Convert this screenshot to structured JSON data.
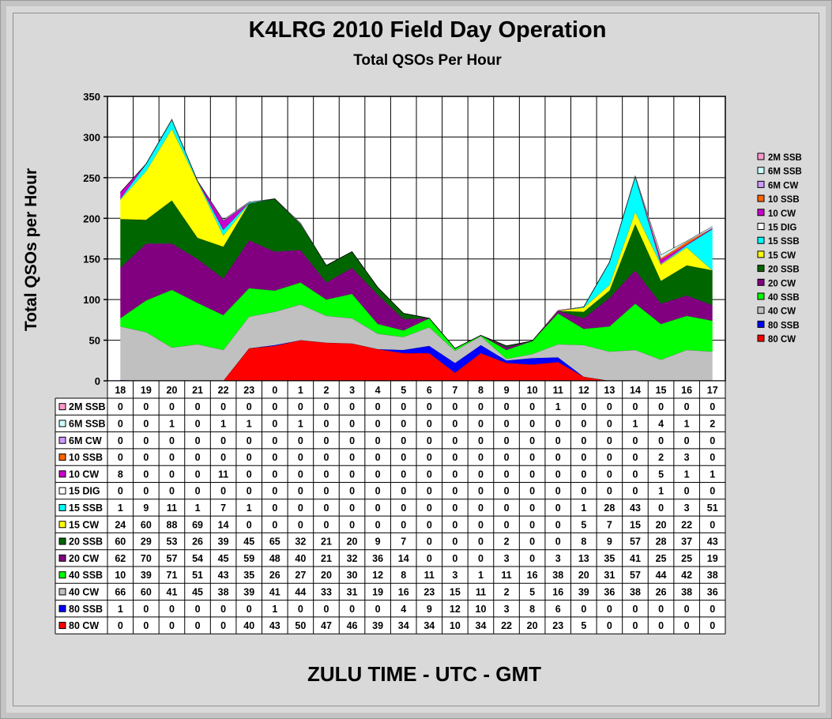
{
  "chart_data": {
    "type": "area",
    "stacked": true,
    "title": "K4LRG 2010 Field Day Operation",
    "subtitle": "Total QSOs Per Hour",
    "ylabel": "Total  QSOs  per  Hour",
    "xlabel": "ZULU TIME  -  UTC  -  GMT",
    "ylim": [
      0,
      350
    ],
    "yticks": [
      0,
      50,
      100,
      150,
      200,
      250,
      300,
      350
    ],
    "grid": true,
    "legend_position": "right",
    "categories": [
      "18",
      "19",
      "20",
      "21",
      "22",
      "23",
      "0",
      "1",
      "2",
      "3",
      "4",
      "5",
      "6",
      "7",
      "8",
      "9",
      "10",
      "11",
      "12",
      "13",
      "14",
      "15",
      "16",
      "17"
    ],
    "series": [
      {
        "name": "2M SSB",
        "color": "#ff99cc",
        "values": [
          0,
          0,
          0,
          0,
          0,
          0,
          0,
          0,
          0,
          0,
          0,
          0,
          0,
          0,
          0,
          0,
          0,
          1,
          0,
          0,
          0,
          0,
          0,
          0
        ]
      },
      {
        "name": "6M SSB",
        "color": "#ccffff",
        "values": [
          0,
          0,
          1,
          0,
          1,
          1,
          0,
          1,
          0,
          0,
          0,
          0,
          0,
          0,
          0,
          0,
          0,
          0,
          0,
          0,
          1,
          4,
          1,
          2
        ]
      },
      {
        "name": "6M CW",
        "color": "#cc99ff",
        "values": [
          0,
          0,
          0,
          0,
          0,
          0,
          0,
          0,
          0,
          0,
          0,
          0,
          0,
          0,
          0,
          0,
          0,
          0,
          0,
          0,
          0,
          0,
          0,
          0
        ]
      },
      {
        "name": "10 SSB",
        "color": "#ff6600",
        "values": [
          0,
          0,
          0,
          0,
          0,
          0,
          0,
          0,
          0,
          0,
          0,
          0,
          0,
          0,
          0,
          0,
          0,
          0,
          0,
          0,
          0,
          2,
          3,
          0
        ]
      },
      {
        "name": "10 CW",
        "color": "#cc00cc",
        "values": [
          8,
          0,
          0,
          0,
          11,
          0,
          0,
          0,
          0,
          0,
          0,
          0,
          0,
          0,
          0,
          0,
          0,
          0,
          0,
          0,
          0,
          5,
          1,
          1
        ]
      },
      {
        "name": "15 DIG",
        "color": "#ffffff",
        "values": [
          0,
          0,
          0,
          0,
          0,
          0,
          0,
          0,
          0,
          0,
          0,
          0,
          0,
          0,
          0,
          0,
          0,
          0,
          0,
          0,
          0,
          1,
          0,
          0
        ]
      },
      {
        "name": "15 SSB",
        "color": "#00ffff",
        "values": [
          1,
          9,
          11,
          1,
          7,
          1,
          0,
          0,
          0,
          0,
          0,
          0,
          0,
          0,
          0,
          0,
          0,
          0,
          1,
          28,
          43,
          0,
          3,
          51
        ]
      },
      {
        "name": "15 CW",
        "color": "#ffff00",
        "values": [
          24,
          60,
          88,
          69,
          14,
          0,
          0,
          0,
          0,
          0,
          0,
          0,
          0,
          0,
          0,
          0,
          0,
          0,
          5,
          7,
          15,
          20,
          22,
          0
        ]
      },
      {
        "name": "20 SSB",
        "color": "#006600",
        "values": [
          60,
          29,
          53,
          26,
          39,
          45,
          65,
          32,
          21,
          20,
          9,
          7,
          0,
          0,
          0,
          2,
          0,
          0,
          8,
          9,
          57,
          28,
          37,
          43
        ]
      },
      {
        "name": "20 CW",
        "color": "#800080",
        "values": [
          62,
          70,
          57,
          54,
          45,
          59,
          48,
          40,
          21,
          32,
          36,
          14,
          0,
          0,
          0,
          3,
          0,
          3,
          13,
          35,
          41,
          25,
          25,
          19
        ]
      },
      {
        "name": "40 SSB",
        "color": "#00ff00",
        "values": [
          10,
          39,
          71,
          51,
          43,
          35,
          26,
          27,
          20,
          30,
          12,
          8,
          11,
          3,
          1,
          11,
          16,
          38,
          20,
          31,
          57,
          44,
          42,
          38
        ]
      },
      {
        "name": "40 CW",
        "color": "#c0c0c0",
        "values": [
          66,
          60,
          41,
          45,
          38,
          39,
          41,
          44,
          33,
          31,
          19,
          16,
          23,
          15,
          11,
          2,
          5,
          16,
          39,
          36,
          38,
          26,
          38,
          36
        ]
      },
      {
        "name": "80 SSB",
        "color": "#0000ff",
        "values": [
          1,
          0,
          0,
          0,
          0,
          0,
          1,
          0,
          0,
          0,
          0,
          4,
          9,
          12,
          10,
          3,
          8,
          6,
          0,
          0,
          0,
          0,
          0,
          0
        ]
      },
      {
        "name": "80 CW",
        "color": "#ff0000",
        "values": [
          0,
          0,
          0,
          0,
          0,
          40,
          43,
          50,
          47,
          46,
          39,
          34,
          34,
          10,
          34,
          22,
          20,
          23,
          5,
          0,
          0,
          0,
          0,
          0
        ]
      }
    ]
  }
}
